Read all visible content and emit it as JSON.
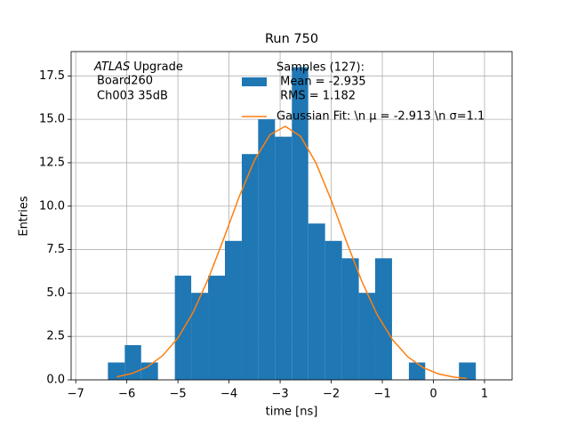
{
  "chart_data": {
    "type": "histogram",
    "title": "Run 750",
    "xlabel": "time [ns]",
    "ylabel": "Entries",
    "annotation": [
      "ATLAS",
      "Upgrade",
      "Board260",
      "Ch003 35dB"
    ],
    "xlim": [
      -7.09,
      1.54
    ],
    "ylim": [
      0,
      18.9
    ],
    "grid": true,
    "legend": "upper center",
    "xticks": [
      {
        "value": -7,
        "label": "−7"
      },
      {
        "value": -6,
        "label": "−6"
      },
      {
        "value": -5,
        "label": "−5"
      },
      {
        "value": -4,
        "label": "−4"
      },
      {
        "value": -3,
        "label": "−3"
      },
      {
        "value": -2,
        "label": "−2"
      },
      {
        "value": -1,
        "label": "−1"
      },
      0,
      1
    ],
    "yticks": [
      {
        "value": 0,
        "label": "0.0"
      },
      {
        "value": 2.5,
        "label": "2.5"
      },
      {
        "value": 5,
        "label": "5.0"
      },
      {
        "value": 7.5,
        "label": "7.5"
      },
      {
        "value": 10,
        "label": "10.0"
      },
      {
        "value": 12.5,
        "label": "12.5"
      },
      {
        "value": 15,
        "label": "15.0"
      },
      {
        "value": 17.5,
        "label": "17.5"
      }
    ],
    "series": [
      {
        "name": [
          "Samples (127):",
          " Mean = -2.935",
          " RMS = 1.182"
        ],
        "color": "#1f77b4",
        "bins": [
          -6.37,
          -6.04,
          -5.72,
          -5.39,
          -5.06,
          -4.74,
          -4.41,
          -4.08,
          -3.75,
          -3.43,
          -3.1,
          -2.77,
          -2.45,
          -2.12,
          -1.79,
          -1.46,
          -1.14,
          -0.81,
          -0.48,
          -0.16,
          0.17,
          0.5,
          0.83
        ],
        "counts": [
          1,
          2,
          1,
          0,
          6,
          5,
          6,
          8,
          13,
          15,
          14,
          18,
          9,
          8,
          7,
          5,
          7,
          0,
          1,
          0,
          0,
          1
        ]
      },
      {
        "name": [
          "Gaussian Fit: \\n μ = -2.913 \\n σ=1.1"
        ],
        "color": "#ff7f0e",
        "x": [
          -6.2,
          -5.9,
          -5.6,
          -5.3,
          -5.0,
          -4.7,
          -4.4,
          -4.1,
          -3.8,
          -3.5,
          -3.2,
          -2.9,
          -2.6,
          -2.3,
          -2.0,
          -1.7,
          -1.4,
          -1.1,
          -0.8,
          -0.5,
          -0.2,
          0.1,
          0.4,
          0.65
        ],
        "values": [
          0.17,
          0.37,
          0.74,
          1.39,
          2.41,
          3.9,
          5.86,
          8.16,
          10.55,
          12.66,
          14.11,
          14.6,
          14.02,
          12.5,
          10.35,
          7.95,
          5.67,
          3.75,
          2.31,
          1.32,
          0.7,
          0.34,
          0.16,
          0.08
        ]
      }
    ]
  }
}
